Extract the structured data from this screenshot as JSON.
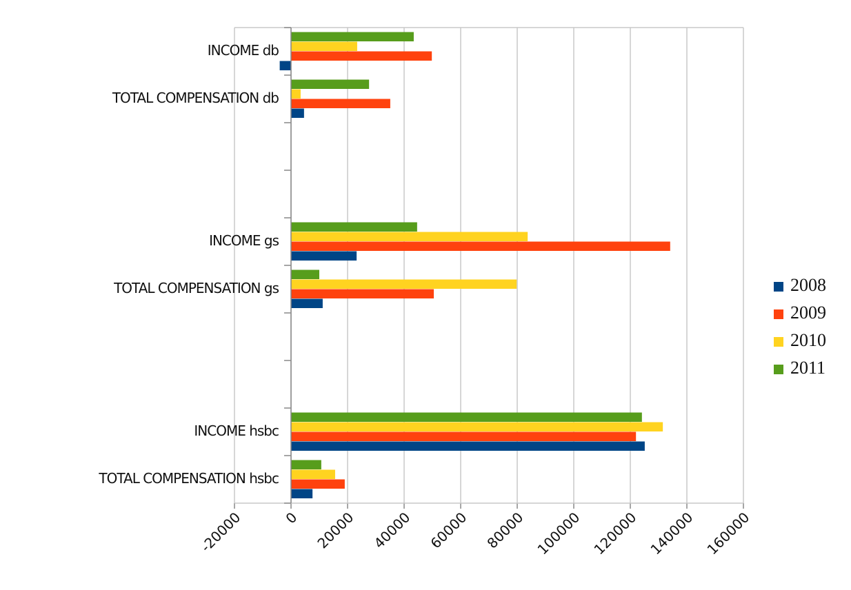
{
  "chart_data": {
    "type": "hbar",
    "categories": [
      "INCOME db",
      "TOTAL COMPENSATION db",
      null,
      null,
      "INCOME gs",
      "TOTAL COMPENSATION gs",
      null,
      null,
      "INCOME hsbc",
      "TOTAL COMPENSATION hsbc"
    ],
    "series": [
      {
        "name": "2008",
        "color": "#004586",
        "values": [
          -4000,
          4600,
          null,
          null,
          23200,
          11200,
          null,
          null,
          125100,
          7600
        ]
      },
      {
        "name": "2009",
        "color": "#ff420e",
        "values": [
          49800,
          35100,
          null,
          null,
          134100,
          50500,
          null,
          null,
          122000,
          19000
        ]
      },
      {
        "name": "2010",
        "color": "#ffd320",
        "values": [
          23400,
          3400,
          null,
          null,
          83700,
          79800,
          null,
          null,
          131500,
          15600
        ]
      },
      {
        "name": "2011",
        "color": "#579d1c",
        "values": [
          43400,
          27600,
          null,
          null,
          44600,
          10000,
          null,
          null,
          124100,
          10700
        ]
      }
    ],
    "xlim": [
      -20000,
      160000
    ],
    "xticks": [
      -20000,
      0,
      20000,
      40000,
      60000,
      80000,
      100000,
      120000,
      140000,
      160000
    ],
    "grid": true,
    "legend": "right"
  }
}
